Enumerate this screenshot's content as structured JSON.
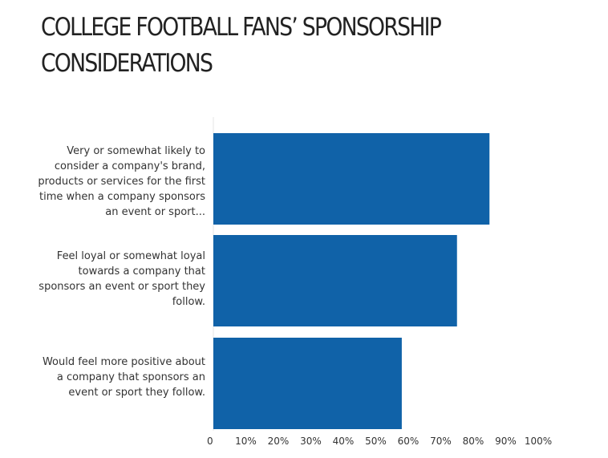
{
  "title": "COLLEGE FOOTBALL FANS’ SPONSORSHIP CONSIDERATIONS",
  "colors": {
    "bar": "#1062a8",
    "title": "#222222",
    "text": "#333333",
    "grid": "#e6e6e6"
  },
  "chart_data": {
    "type": "bar",
    "orientation": "horizontal",
    "title": "COLLEGE FOOTBALL FANS’ SPONSORSHIP CONSIDERATIONS",
    "categories": [
      "Very or somewhat likely to consider a company's brand, products or services for the first time when a company sponsors an event or sport...",
      "Feel loyal or somewhat loyal towards a company that sponsors an event or sport they follow.",
      "Would feel more positive about a company that sponsors an event or sport they follow."
    ],
    "values": [
      85,
      75,
      58
    ],
    "x_ticks": [
      "0",
      "10%",
      "20%",
      "30%",
      "40%",
      "50%",
      "60%",
      "70%",
      "80%",
      "90%",
      "100%"
    ],
    "xlim": [
      0,
      100
    ],
    "xlabel": "",
    "ylabel": "",
    "grid": false,
    "legend": "none"
  }
}
